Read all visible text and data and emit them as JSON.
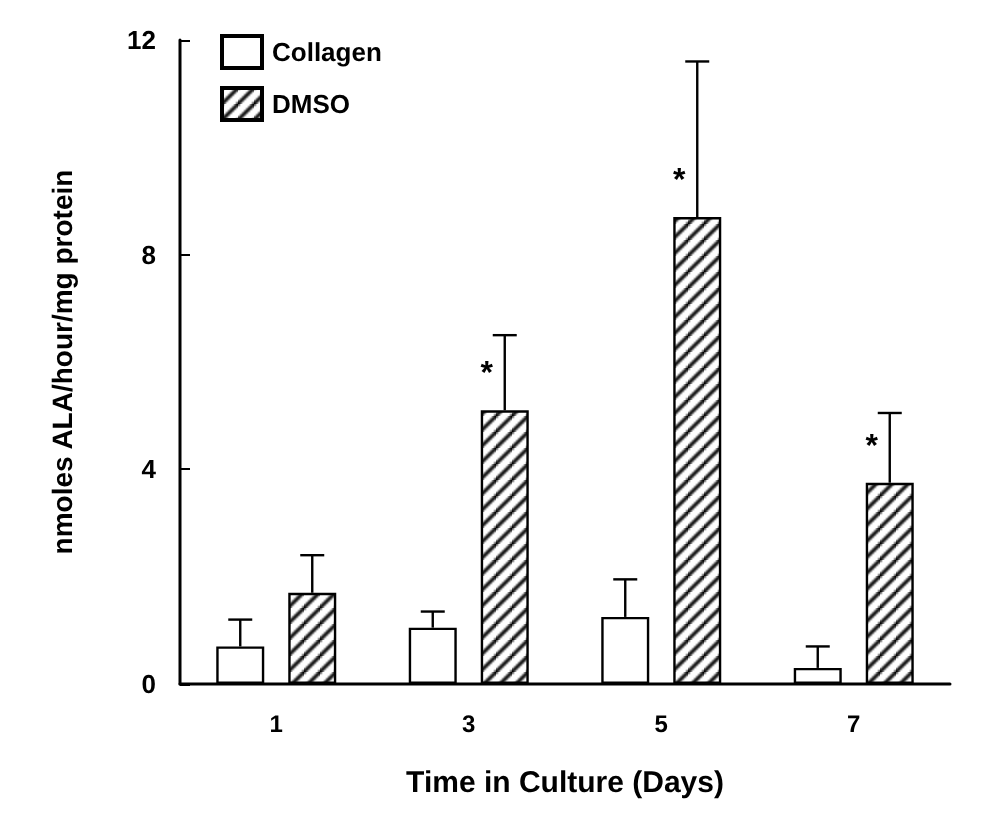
{
  "chart_data": {
    "type": "bar",
    "xlabel": "Time in Culture (Days)",
    "ylabel": "nmoles ALA/hour/mg protein",
    "categories": [
      "1",
      "3",
      "5",
      "7"
    ],
    "series": [
      {
        "name": "Collagen",
        "color": "#ffffff",
        "values": [
          0.7,
          1.05,
          1.25,
          0.3
        ],
        "errors": [
          [
            0.7,
            1.2
          ],
          [
            1.05,
            1.35
          ],
          [
            1.25,
            1.95
          ],
          [
            0.3,
            0.7
          ]
        ]
      },
      {
        "name": "DMSO",
        "color": "#000000",
        "values": [
          1.7,
          5.1,
          8.7,
          3.75
        ],
        "errors": [
          [
            1.7,
            2.4
          ],
          [
            5.1,
            6.5
          ],
          [
            8.7,
            11.6
          ],
          [
            3.75,
            5.05
          ]
        ]
      }
    ],
    "annotations": [
      "*",
      "*",
      "*"
    ],
    "ylim": [
      0,
      12
    ],
    "yticks": [
      0,
      4,
      8,
      12
    ],
    "grid": false,
    "legend": "top left"
  }
}
